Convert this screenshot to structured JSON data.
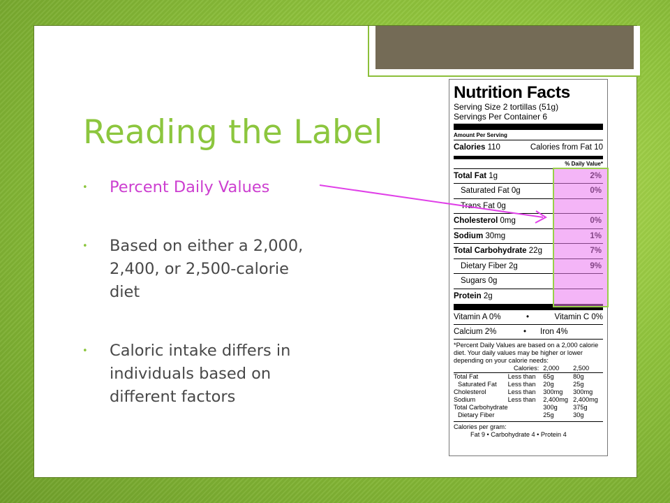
{
  "slide": {
    "title": "Reading the Label",
    "bullets": [
      {
        "text": "Percent Daily Values"
      },
      {
        "text": "Based on either a 2,000, 2,400, or 2,500-calorie diet"
      },
      {
        "text": "Caloric intake differs in individuals based on different factors"
      }
    ],
    "bullet_glyph": "•"
  },
  "label": {
    "title": "Nutrition Facts",
    "serving_size": "Serving Size 2 tortillas (51g)",
    "servings_per_container": "Servings Per Container 6",
    "amount_per_serving": "Amount Per Serving",
    "calories": "Calories",
    "calories_value": "110",
    "calories_from_fat": "Calories from Fat 10",
    "dv_header": "% Daily Value*",
    "rows": [
      {
        "name": "Total Fat",
        "amount": "1g",
        "pct": "2%",
        "bold": true
      },
      {
        "name": "Saturated Fat",
        "amount": "0g",
        "pct": "0%",
        "bold": false
      },
      {
        "name": "Trans Fat",
        "amount": "0g",
        "pct": "",
        "bold": false
      },
      {
        "name": "Cholesterol",
        "amount": "0mg",
        "pct": "0%",
        "bold": true
      },
      {
        "name": "Sodium",
        "amount": "30mg",
        "pct": "1%",
        "bold": true
      },
      {
        "name": "Total Carbohydrate",
        "amount": "22g",
        "pct": "7%",
        "bold": true
      },
      {
        "name": "Dietary Fiber",
        "amount": "2g",
        "pct": "9%",
        "bold": false
      },
      {
        "name": "Sugars",
        "amount": "0g",
        "pct": "",
        "bold": false
      },
      {
        "name": "Protein",
        "amount": "2g",
        "pct": "",
        "bold": true
      }
    ],
    "vitamin_a": "Vitamin A 0%",
    "vitamin_c": "Vitamin C 0%",
    "calcium": "Calcium 2%",
    "iron": "Iron 4%",
    "dot": "•",
    "footnote": "*Percent Daily Values are based on a 2,000 calorie diet. Your daily values may be higher or lower depending on your calorie needs:",
    "table_header": [
      "",
      "Calories:",
      "2,000",
      "2,500"
    ],
    "table_rows": [
      [
        "Total Fat",
        "Less than",
        "65g",
        "80g"
      ],
      [
        "Saturated Fat",
        "Less than",
        "20g",
        "25g"
      ],
      [
        "Cholesterol",
        "Less than",
        "300mg",
        "300mg"
      ],
      [
        "Sodium",
        "Less than",
        "2,400mg",
        "2,400mg"
      ],
      [
        "Total Carbohydrate",
        "",
        "300g",
        "375g"
      ],
      [
        "Dietary Fiber",
        "",
        "25g",
        "30g"
      ]
    ],
    "calories_per_gram": "Calories per gram:",
    "cpg_values": "Fat 9 • Carbohydrate 4 • Protein 4"
  },
  "colors": {
    "accent_green": "#8cc63e",
    "highlight_magenta": "#cc3fd0",
    "tab_brown": "#746b56"
  }
}
